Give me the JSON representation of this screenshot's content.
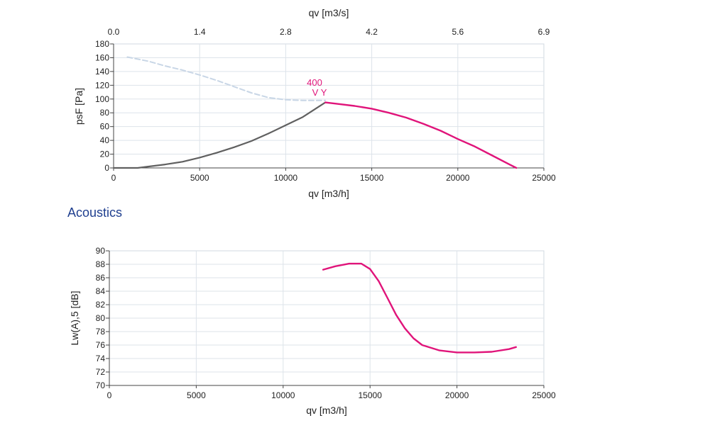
{
  "section_title": "Acoustics",
  "chart_data": [
    {
      "type": "line",
      "xlabel": "qv [m3/h]",
      "ylabel": "psF [Pa]",
      "x2label": "qv [m3/s]",
      "xlim": [
        0,
        25000
      ],
      "ylim": [
        0,
        180
      ],
      "x2lim": [
        0,
        6.9
      ],
      "xticks": [
        0,
        5000,
        10000,
        15000,
        20000,
        25000
      ],
      "yticks": [
        0,
        20,
        40,
        60,
        80,
        100,
        120,
        140,
        160,
        180
      ],
      "x2ticks": [
        "0.0",
        "1.4",
        "2.8",
        "4.2",
        "5.6",
        "6.9"
      ],
      "grid": true,
      "colors": {
        "working": "#e0147a",
        "system": "#606060",
        "dashed": "#c8d6e6"
      },
      "annotations": [
        "400",
        "V Y"
      ],
      "series": [
        {
          "style": "dashed",
          "points": [
            [
              800,
              161
            ],
            [
              2000,
              155
            ],
            [
              3000,
              148
            ],
            [
              4000,
              142
            ],
            [
              5000,
              135
            ],
            [
              6000,
              127
            ],
            [
              7000,
              118
            ],
            [
              8000,
              109
            ],
            [
              9000,
              102
            ],
            [
              10000,
              99
            ],
            [
              11000,
              98
            ],
            [
              12300,
              98
            ]
          ]
        },
        {
          "style": "system",
          "points": [
            [
              0,
              0
            ],
            [
              1400,
              0
            ],
            [
              2000,
              2
            ],
            [
              3000,
              5
            ],
            [
              4000,
              9
            ],
            [
              5000,
              15
            ],
            [
              6000,
              22
            ],
            [
              7000,
              30
            ],
            [
              8000,
              39
            ],
            [
              9000,
              50
            ],
            [
              10000,
              62
            ],
            [
              11000,
              74
            ],
            [
              12300,
              95
            ]
          ]
        },
        {
          "style": "working",
          "points": [
            [
              12300,
              95
            ],
            [
              13000,
              93
            ],
            [
              14000,
              90
            ],
            [
              15000,
              86
            ],
            [
              16000,
              80
            ],
            [
              17000,
              73
            ],
            [
              18000,
              64
            ],
            [
              19000,
              54
            ],
            [
              20000,
              42
            ],
            [
              21000,
              31
            ],
            [
              22000,
              18
            ],
            [
              23000,
              5
            ],
            [
              23400,
              0
            ]
          ]
        }
      ]
    },
    {
      "type": "line",
      "xlabel": "qv [m3/h]",
      "ylabel": "Lw(A),5 [dB]",
      "xlim": [
        0,
        25000
      ],
      "ylim": [
        70,
        90
      ],
      "xticks": [
        0,
        5000,
        10000,
        15000,
        20000,
        25000
      ],
      "yticks": [
        70,
        72,
        74,
        76,
        78,
        80,
        82,
        84,
        86,
        88,
        90
      ],
      "grid": true,
      "colors": {
        "line": "#e0147a"
      },
      "series": [
        {
          "points": [
            [
              12300,
              87.2
            ],
            [
              13000,
              87.7
            ],
            [
              13800,
              88.1
            ],
            [
              14500,
              88.1
            ],
            [
              15000,
              87.3
            ],
            [
              15500,
              85.5
            ],
            [
              16000,
              83.0
            ],
            [
              16500,
              80.5
            ],
            [
              17000,
              78.5
            ],
            [
              17500,
              77.0
            ],
            [
              18000,
              76.0
            ],
            [
              19000,
              75.2
            ],
            [
              20000,
              74.9
            ],
            [
              21000,
              74.9
            ],
            [
              22000,
              75.0
            ],
            [
              23000,
              75.4
            ],
            [
              23400,
              75.7
            ]
          ]
        }
      ]
    }
  ]
}
